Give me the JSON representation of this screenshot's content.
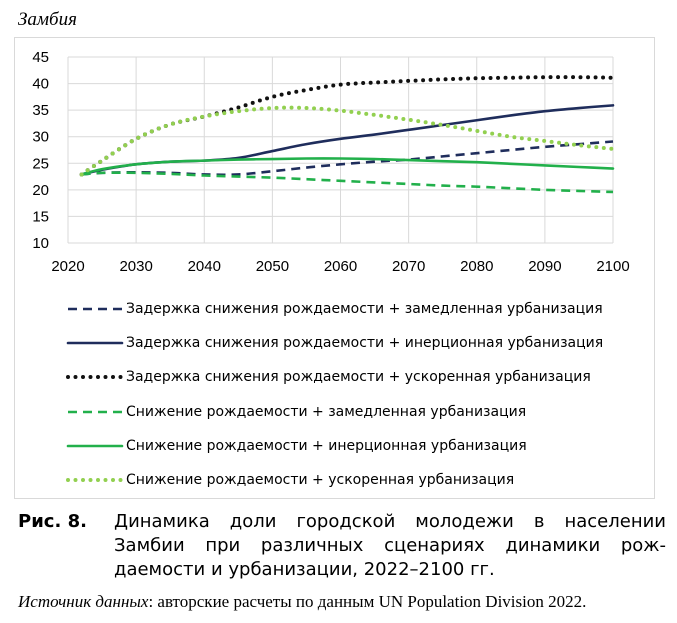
{
  "chart_data": {
    "type": "line",
    "title": "Замбия",
    "xlabel": "",
    "ylabel": "",
    "xlim": [
      2020,
      2100
    ],
    "ylim": [
      10,
      45
    ],
    "xticks": [
      2020,
      2030,
      2040,
      2050,
      2060,
      2070,
      2080,
      2090,
      2100
    ],
    "yticks": [
      10,
      15,
      20,
      25,
      30,
      35,
      40,
      45
    ],
    "grid": true,
    "legend_position": "bottom",
    "x": [
      2022,
      2025,
      2030,
      2035,
      2040,
      2045,
      2050,
      2055,
      2060,
      2065,
      2070,
      2075,
      2080,
      2085,
      2090,
      2095,
      2100
    ],
    "series": [
      {
        "name": "Задержка снижения рождаемости + замедленная урбанизация",
        "color": "#1f2d5c",
        "dash": "dashed",
        "values": [
          22.9,
          23.2,
          23.3,
          23.2,
          22.9,
          22.9,
          23.5,
          24.2,
          24.8,
          25.3,
          25.7,
          26.3,
          26.9,
          27.5,
          28.1,
          28.6,
          29.1
        ]
      },
      {
        "name": "Задержка снижения рождаемости + инерционная урбанизация",
        "color": "#1f2d5c",
        "dash": "solid",
        "values": [
          22.9,
          23.8,
          24.8,
          25.3,
          25.5,
          26.0,
          27.3,
          28.6,
          29.6,
          30.4,
          31.3,
          32.2,
          33.1,
          34.0,
          34.8,
          35.4,
          35.9
        ]
      },
      {
        "name": "Задержка снижения рождаемости + ускоренная урбанизация",
        "color": "#111111",
        "dash": "dotted",
        "values": [
          22.9,
          25.5,
          29.6,
          32.3,
          33.8,
          35.5,
          37.5,
          38.8,
          39.8,
          40.2,
          40.5,
          40.8,
          41.0,
          41.1,
          41.2,
          41.2,
          41.1
        ]
      },
      {
        "name": "Снижение рождаемости + замедленная урбанизация",
        "color": "#22b04b",
        "dash": "dashed",
        "values": [
          22.9,
          23.2,
          23.2,
          23.0,
          22.7,
          22.5,
          22.3,
          22.0,
          21.7,
          21.4,
          21.1,
          20.8,
          20.6,
          20.3,
          20.0,
          19.8,
          19.6
        ]
      },
      {
        "name": "Снижение рождаемости + инерционная урбанизация",
        "color": "#22b04b",
        "dash": "solid",
        "values": [
          22.9,
          23.9,
          24.8,
          25.3,
          25.5,
          25.7,
          25.8,
          25.9,
          25.9,
          25.8,
          25.6,
          25.4,
          25.2,
          24.9,
          24.6,
          24.3,
          24.0
        ]
      },
      {
        "name": "Снижение рождаемости + ускоренная урбанизация",
        "color": "#92d050",
        "dash": "dotted",
        "values": [
          22.9,
          25.5,
          29.6,
          32.3,
          33.8,
          34.8,
          35.4,
          35.4,
          34.9,
          34.1,
          33.2,
          32.2,
          31.1,
          30.0,
          29.2,
          28.4,
          27.7
        ]
      }
    ]
  },
  "caption": {
    "label": "Рис. 8.",
    "line1": "Динамика доли городской молодежи в населении",
    "rest": "Замбии при различных сценариях динамики рож-даемости и урбанизации, 2022–2100 гг."
  },
  "source": {
    "label": "Источник данных",
    "text": ": авторские расчеты по данным UN Population Division 2022."
  }
}
